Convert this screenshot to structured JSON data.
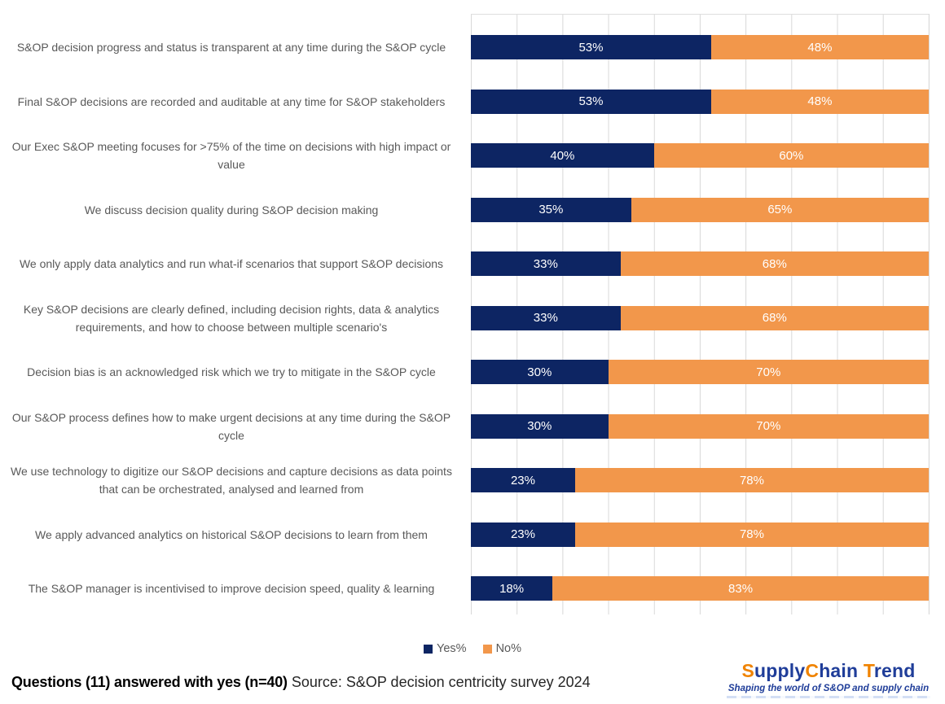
{
  "chart_data": {
    "type": "bar",
    "orientation": "horizontal-stacked",
    "title": "",
    "xlabel": "",
    "ylabel": "",
    "xlim": [
      0,
      100
    ],
    "grid": true,
    "legend_position": "bottom",
    "value_suffix": "%",
    "categories": [
      "S&OP decision progress and status is transparent at any time during the S&OP cycle",
      "Final S&OP decisions are recorded and auditable at any time for S&OP stakeholders",
      "Our Exec S&OP meeting focuses for >75% of the time on decisions with high impact or value",
      "We discuss decision quality during S&OP decision making",
      "We only apply data analytics and run what-if scenarios that support S&OP decisions",
      "Key S&OP decisions are clearly defined, including decision rights, data & analytics requirements, and how to choose between multiple scenario's",
      "Decision bias is an acknowledged risk which we try to mitigate in the S&OP cycle",
      "Our S&OP process defines how to make urgent decisions at any time during the S&OP cycle",
      "We use technology to digitize our S&OP decisions and capture decisions as data points that can be orchestrated, analysed and learned from",
      "We apply advanced analytics on historical S&OP decisions to learn from them",
      "The S&OP manager is incentivised to improve decision speed, quality & learning"
    ],
    "series": [
      {
        "name": "Yes%",
        "color": "#0d2563",
        "values": [
          53,
          53,
          40,
          35,
          33,
          33,
          30,
          30,
          23,
          23,
          18
        ]
      },
      {
        "name": "No%",
        "color": "#f2974b",
        "values": [
          48,
          48,
          60,
          65,
          68,
          68,
          70,
          70,
          78,
          78,
          83
        ]
      }
    ]
  },
  "legend": {
    "items": [
      {
        "label": "Yes%",
        "color": "#0d2563"
      },
      {
        "label": "No%",
        "color": "#f2974b"
      }
    ]
  },
  "caption": {
    "bold": "Questions (11) answered with yes (n=40)",
    "regular": " Source: S&OP decision centricity survey 2024"
  },
  "logo": {
    "segments": [
      {
        "text": "S",
        "color": "#f08300"
      },
      {
        "text": "upply",
        "color": "#1f3d99"
      },
      {
        "text": "C",
        "color": "#f08300"
      },
      {
        "text": "hain",
        "color": "#1f3d99"
      },
      {
        "text": " T",
        "color": "#f08300"
      },
      {
        "text": "rend",
        "color": "#1f3d99"
      }
    ],
    "tagline": "Shaping the world of S&OP and supply chain",
    "tagline_color": "#1f3d99"
  },
  "colors": {
    "gridline": "#d8d8d8",
    "category_text": "#595959",
    "bar_label_text": "#ffffff"
  }
}
